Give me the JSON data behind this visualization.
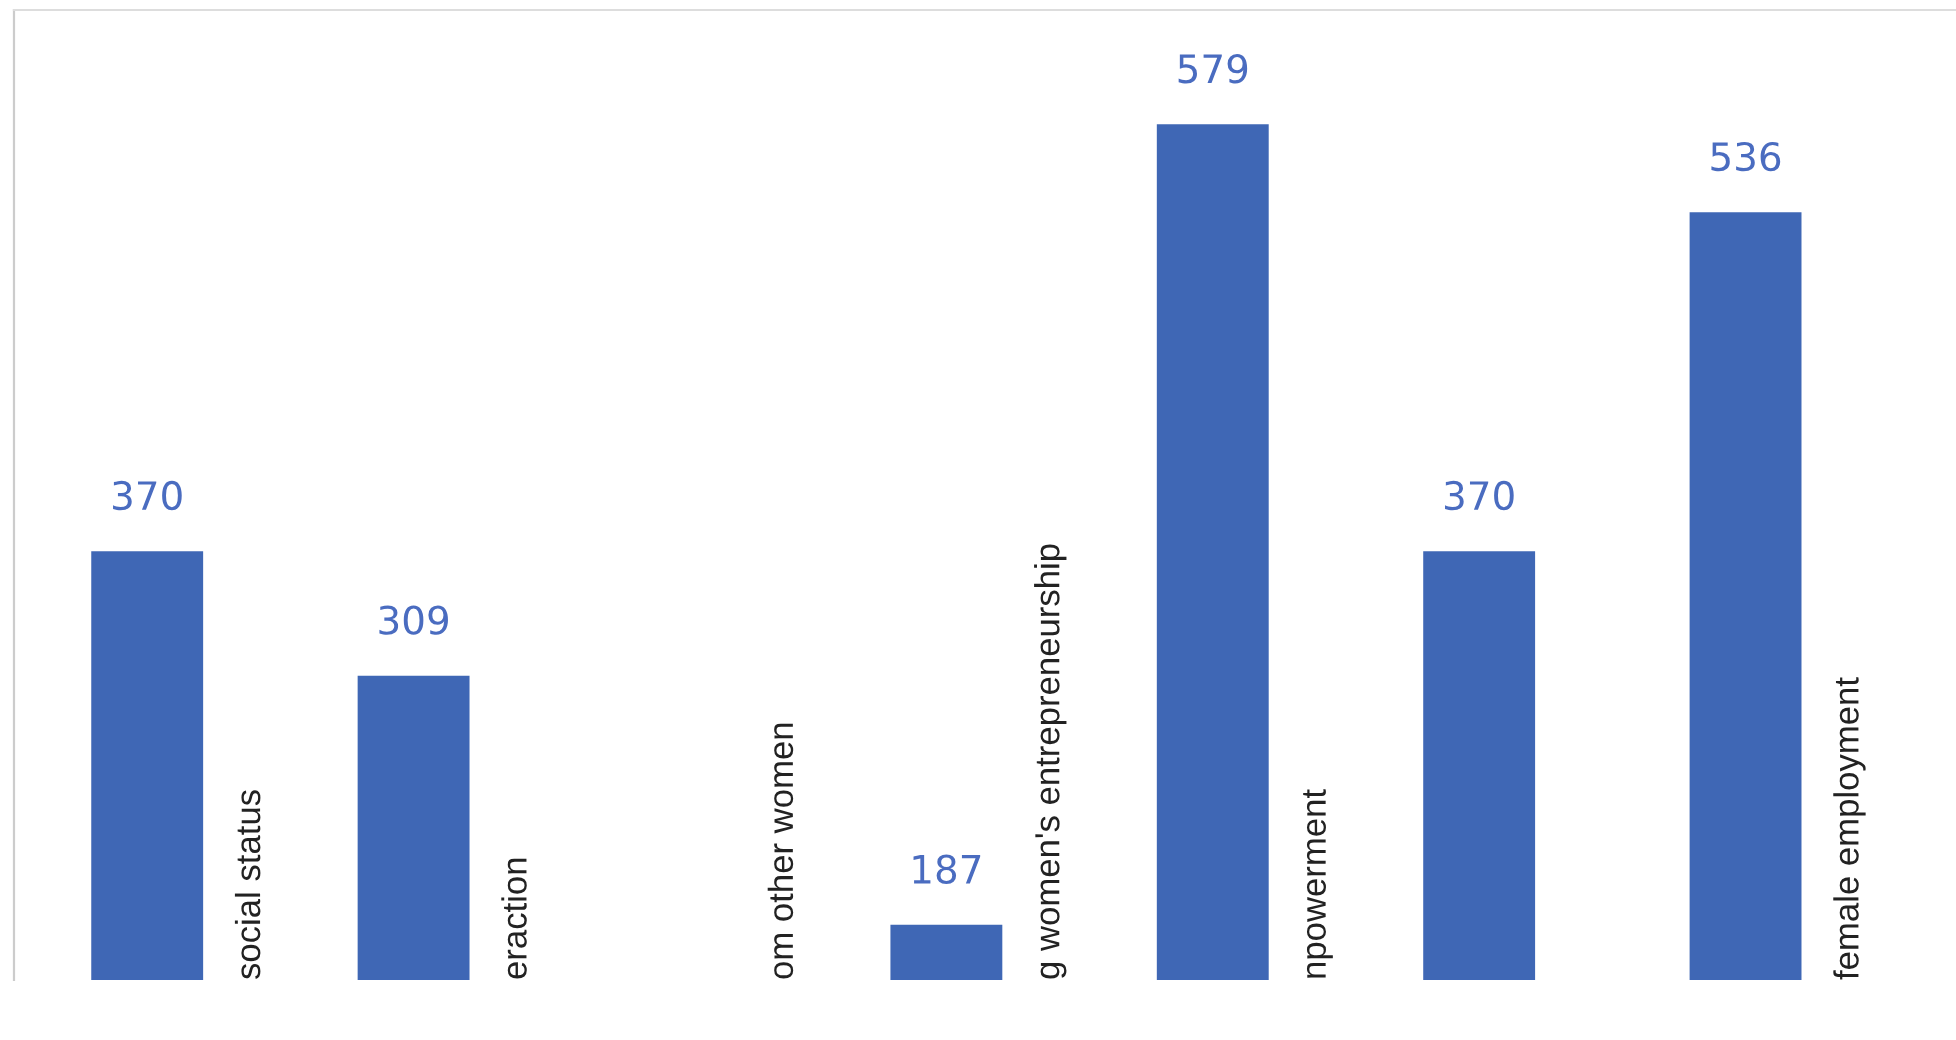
{
  "chart_data": {
    "type": "bar",
    "categories": [
      "social status",
      "eraction",
      "om other women",
      "g women's entrepreneurship",
      "npowerment",
      null,
      "female employment"
    ],
    "values": [
      370,
      309,
      null,
      187,
      579,
      370,
      536
    ],
    "color": "#3f67b5",
    "ylim": [
      160,
      635
    ],
    "relative": false,
    "data_labels": true
  }
}
